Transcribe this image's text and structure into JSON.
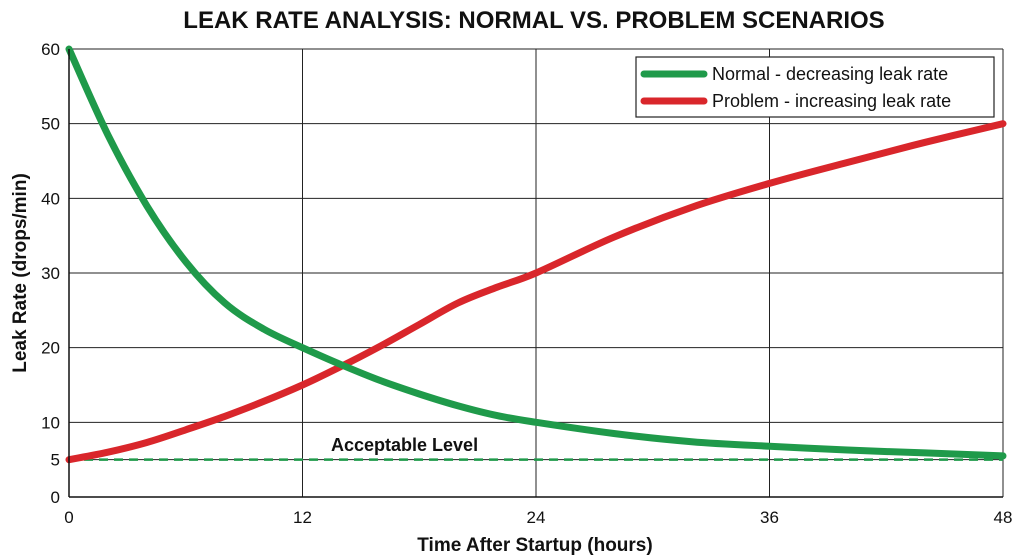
{
  "chart_data": {
    "type": "line",
    "title": "LEAK RATE ANALYSIS: NORMAL VS. PROBLEM SCENARIOS",
    "xlabel": "Time After Startup (hours)",
    "ylabel": "Leak Rate (drops/min)",
    "xlim": [
      0,
      48
    ],
    "ylim": [
      0,
      60
    ],
    "xticks": [
      0,
      12,
      24,
      36,
      48
    ],
    "yticks": [
      0,
      5,
      10,
      20,
      30,
      40,
      50,
      60
    ],
    "grid": true,
    "legend_position": "top-right",
    "series": [
      {
        "name": "Normal - decreasing leak rate",
        "color": "#1f9a4a",
        "x": [
          0,
          2,
          4,
          6,
          8,
          10,
          12,
          14,
          16,
          18,
          20,
          22,
          24,
          28,
          32,
          36,
          40,
          44,
          48
        ],
        "values": [
          60,
          48.5,
          39,
          31.5,
          26,
          22.5,
          20,
          17.7,
          15.6,
          13.8,
          12.2,
          10.9,
          10,
          8.5,
          7.4,
          6.8,
          6.3,
          5.9,
          5.5
        ]
      },
      {
        "name": "Problem - increasing leak rate",
        "color": "#d9262b",
        "x": [
          0,
          2,
          4,
          6,
          8,
          10,
          12,
          14,
          16,
          18,
          20,
          22,
          24,
          28,
          32,
          36,
          40,
          44,
          48
        ],
        "values": [
          5,
          6,
          7.3,
          9,
          10.8,
          12.8,
          15,
          17.5,
          20.2,
          23.1,
          26,
          28.1,
          30,
          34.8,
          38.8,
          42,
          44.8,
          47.5,
          50
        ]
      }
    ],
    "reference_line": {
      "label": "Acceptable Level",
      "value": 5,
      "color": "#1f9a4a"
    }
  }
}
